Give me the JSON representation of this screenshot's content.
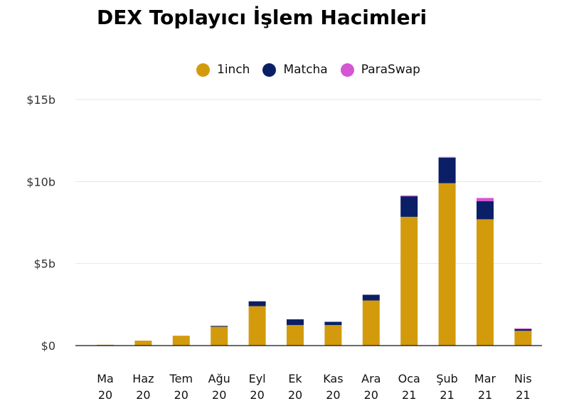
{
  "chart_data": {
    "type": "bar",
    "stacked": true,
    "title": "DEX Toplayıcı İşlem Hacimleri",
    "xlabel": "",
    "ylabel": "",
    "categories": [
      [
        "Ma",
        "20"
      ],
      [
        "Haz",
        "20"
      ],
      [
        "Tem",
        "20"
      ],
      [
        "Ağu",
        "20"
      ],
      [
        "Eyl",
        "20"
      ],
      [
        "Ek",
        "20"
      ],
      [
        "Kas",
        "20"
      ],
      [
        "Ara",
        "20"
      ],
      [
        "Oca",
        "21"
      ],
      [
        "Şub",
        "21"
      ],
      [
        "Mar",
        "21"
      ],
      [
        "Nis",
        "21"
      ]
    ],
    "series": [
      {
        "name": "1inch",
        "color": "#d39b0c",
        "values": [
          0.05,
          0.3,
          0.6,
          1.15,
          2.4,
          1.25,
          1.25,
          2.75,
          7.85,
          9.9,
          7.7,
          0.9
        ]
      },
      {
        "name": "Matcha",
        "color": "#0b1f66",
        "values": [
          0.0,
          0.0,
          0.0,
          0.05,
          0.3,
          0.35,
          0.2,
          0.35,
          1.25,
          1.55,
          1.1,
          0.1
        ]
      },
      {
        "name": "ParaSwap",
        "color": "#d456d4",
        "values": [
          0.0,
          0.0,
          0.0,
          0.0,
          0.0,
          0.0,
          0.0,
          0.0,
          0.05,
          0.05,
          0.2,
          0.05
        ]
      }
    ],
    "y_ticks": [
      {
        "value": 0,
        "label": "$0"
      },
      {
        "value": 5,
        "label": "$5b"
      },
      {
        "value": 10,
        "label": "$10b"
      },
      {
        "value": 15,
        "label": "$15b"
      }
    ],
    "ylim": [
      0,
      15
    ],
    "grid": true,
    "legend_position": "top-center"
  }
}
